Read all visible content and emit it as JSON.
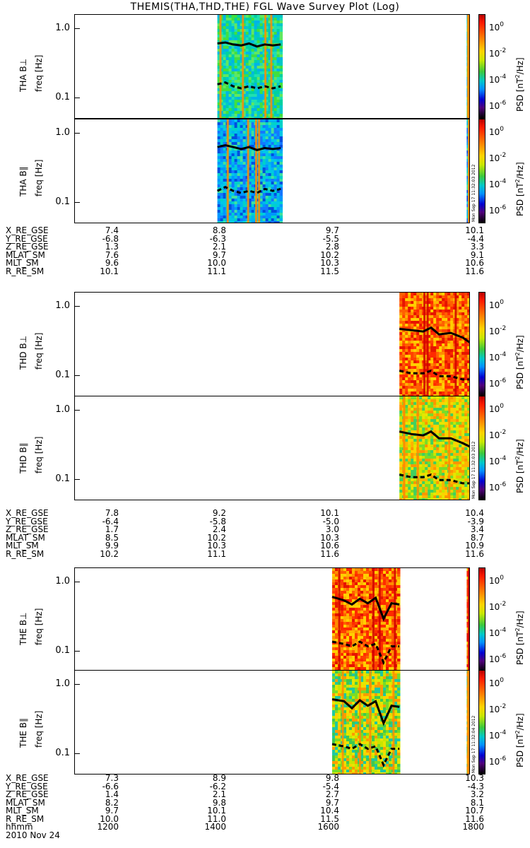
{
  "title": "THEMIS(THA,THD,THE) FGL Wave Survey Plot (Log)",
  "colorbar": {
    "label_prefix": "PSD [nT",
    "label_exp": "2",
    "label_suffix": "/Hz]",
    "ticks": [
      {
        "base": "10",
        "exp": "0",
        "log": 0
      },
      {
        "base": "10",
        "exp": "-2",
        "log": -2
      },
      {
        "base": "10",
        "exp": "-4",
        "log": -4
      },
      {
        "base": "10",
        "exp": "-6",
        "log": -6
      }
    ],
    "range_log": [
      -7,
      1
    ]
  },
  "timestamps": [
    "Mon Sep 17 11:32:03 2012",
    "Mon Sep 17 11:32:03 2012",
    "Mon Sep 17 11:32:04 2012"
  ],
  "chart_data": [
    {
      "type": "heatmap",
      "probe": "THA",
      "panels": [
        {
          "ylabel": "THA B⊥",
          "yunit": "freq [Hz]",
          "ytick_labels": [
            "1.0",
            "0.1"
          ],
          "ylim": [
            0.05,
            1.6
          ],
          "yscale": "log",
          "data_segments": [
            [
              0.36,
              0.52
            ],
            [
              0.99,
              1.0
            ]
          ],
          "dominant": "green-cyan",
          "line_solid": [
            [
              0.36,
              0.62
            ],
            [
              0.38,
              0.64
            ],
            [
              0.4,
              0.6
            ],
            [
              0.42,
              0.58
            ],
            [
              0.44,
              0.62
            ],
            [
              0.46,
              0.56
            ],
            [
              0.48,
              0.6
            ],
            [
              0.5,
              0.58
            ],
            [
              0.52,
              0.6
            ]
          ],
          "line_dashed": [
            [
              0.36,
              0.16
            ],
            [
              0.38,
              0.17
            ],
            [
              0.4,
              0.15
            ],
            [
              0.42,
              0.14
            ],
            [
              0.44,
              0.15
            ],
            [
              0.46,
              0.14
            ],
            [
              0.48,
              0.15
            ],
            [
              0.5,
              0.14
            ],
            [
              0.52,
              0.15
            ]
          ]
        },
        {
          "ylabel": "THA B∥",
          "yunit": "freq [Hz]",
          "ytick_labels": [
            "1.0",
            "0.1"
          ],
          "ylim": [
            0.05,
            1.6
          ],
          "yscale": "log",
          "data_segments": [
            [
              0.36,
              0.52
            ],
            [
              0.99,
              1.0
            ]
          ],
          "dominant": "cyan-blue",
          "line_solid": [
            [
              0.36,
              0.64
            ],
            [
              0.38,
              0.68
            ],
            [
              0.4,
              0.64
            ],
            [
              0.42,
              0.6
            ],
            [
              0.44,
              0.64
            ],
            [
              0.46,
              0.58
            ],
            [
              0.48,
              0.62
            ],
            [
              0.5,
              0.6
            ],
            [
              0.52,
              0.62
            ]
          ],
          "line_dashed": [
            [
              0.36,
              0.15
            ],
            [
              0.38,
              0.17
            ],
            [
              0.4,
              0.15
            ],
            [
              0.42,
              0.14
            ],
            [
              0.44,
              0.15
            ],
            [
              0.46,
              0.14
            ],
            [
              0.48,
              0.16
            ],
            [
              0.5,
              0.15
            ],
            [
              0.52,
              0.16
            ]
          ]
        }
      ],
      "orbit": {
        "labels": [
          "X_RE_GSE",
          "Y_RE_GSE",
          "Z_RE_GSE",
          "MLAT_SM",
          "MLT_SM",
          "R_RE_SM"
        ],
        "values": [
          [
            "7.4",
            "8.8",
            "9.7",
            "10.1"
          ],
          [
            "-6.8",
            "-6.3",
            "-5.5",
            "-4.4"
          ],
          [
            "1.3",
            "2.1",
            "2.8",
            "3.3"
          ],
          [
            "7.6",
            "9.7",
            "10.2",
            "9.1"
          ],
          [
            "9.6",
            "10.0",
            "10.3",
            "10.6"
          ],
          [
            "10.1",
            "11.1",
            "11.5",
            "11.6"
          ]
        ]
      }
    },
    {
      "type": "heatmap",
      "probe": "THD",
      "panels": [
        {
          "ylabel": "THD B⊥",
          "yunit": "freq [Hz]",
          "ytick_labels": [
            "1.0",
            "0.1"
          ],
          "ylim": [
            0.05,
            1.6
          ],
          "yscale": "log",
          "data_segments": [
            [
              0.82,
              1.0
            ]
          ],
          "dominant": "red-orange",
          "line_solid": [
            [
              0.82,
              0.48
            ],
            [
              0.85,
              0.46
            ],
            [
              0.88,
              0.44
            ],
            [
              0.9,
              0.5
            ],
            [
              0.92,
              0.4
            ],
            [
              0.95,
              0.42
            ],
            [
              0.98,
              0.36
            ],
            [
              1.0,
              0.3
            ]
          ],
          "line_dashed": [
            [
              0.82,
              0.12
            ],
            [
              0.85,
              0.11
            ],
            [
              0.88,
              0.11
            ],
            [
              0.9,
              0.12
            ],
            [
              0.92,
              0.1
            ],
            [
              0.95,
              0.1
            ],
            [
              0.98,
              0.09
            ],
            [
              1.0,
              0.09
            ]
          ]
        },
        {
          "ylabel": "THD B∥",
          "yunit": "freq [Hz]",
          "ytick_labels": [
            "1.0",
            "0.1"
          ],
          "ylim": [
            0.05,
            1.6
          ],
          "yscale": "log",
          "data_segments": [
            [
              0.82,
              1.0
            ]
          ],
          "dominant": "yellow-green",
          "line_solid": [
            [
              0.82,
              0.5
            ],
            [
              0.85,
              0.46
            ],
            [
              0.88,
              0.44
            ],
            [
              0.9,
              0.5
            ],
            [
              0.92,
              0.4
            ],
            [
              0.95,
              0.4
            ],
            [
              0.98,
              0.34
            ],
            [
              1.0,
              0.3
            ]
          ],
          "line_dashed": [
            [
              0.82,
              0.12
            ],
            [
              0.85,
              0.11
            ],
            [
              0.88,
              0.11
            ],
            [
              0.9,
              0.12
            ],
            [
              0.92,
              0.1
            ],
            [
              0.95,
              0.1
            ],
            [
              0.98,
              0.09
            ],
            [
              1.0,
              0.09
            ]
          ]
        }
      ],
      "orbit": {
        "labels": [
          "X_RE_GSE",
          "Y_RE_GSE",
          "Z_RE_GSE",
          "MLAT_SM",
          "MLT_SM",
          "R_RE_SM"
        ],
        "values": [
          [
            "7.8",
            "9.2",
            "10.1",
            "10.4"
          ],
          [
            "-6.4",
            "-5.8",
            "-5.0",
            "-3.9"
          ],
          [
            "1.7",
            "2.4",
            "3.0",
            "3.4"
          ],
          [
            "8.5",
            "10.2",
            "10.3",
            "8.7"
          ],
          [
            "9.9",
            "10.3",
            "10.6",
            "10.9"
          ],
          [
            "10.2",
            "11.1",
            "11.6",
            "11.6"
          ]
        ]
      }
    },
    {
      "type": "heatmap",
      "probe": "THE",
      "panels": [
        {
          "ylabel": "THE B⊥",
          "yunit": "freq [Hz]",
          "ytick_labels": [
            "1.0",
            "0.1"
          ],
          "ylim": [
            0.05,
            1.6
          ],
          "yscale": "log",
          "data_segments": [
            [
              0.65,
              0.82
            ],
            [
              0.99,
              1.0
            ]
          ],
          "dominant": "red-orange",
          "line_solid": [
            [
              0.65,
              0.62
            ],
            [
              0.68,
              0.55
            ],
            [
              0.7,
              0.48
            ],
            [
              0.72,
              0.58
            ],
            [
              0.74,
              0.5
            ],
            [
              0.76,
              0.6
            ],
            [
              0.78,
              0.3
            ],
            [
              0.8,
              0.5
            ],
            [
              0.82,
              0.48
            ]
          ],
          "line_dashed": [
            [
              0.65,
              0.14
            ],
            [
              0.68,
              0.13
            ],
            [
              0.7,
              0.12
            ],
            [
              0.72,
              0.14
            ],
            [
              0.74,
              0.12
            ],
            [
              0.76,
              0.13
            ],
            [
              0.78,
              0.07
            ],
            [
              0.8,
              0.12
            ],
            [
              0.82,
              0.12
            ]
          ]
        },
        {
          "ylabel": "THE B∥",
          "yunit": "freq [Hz]",
          "ytick_labels": [
            "1.0",
            "0.1"
          ],
          "ylim": [
            0.05,
            1.6
          ],
          "yscale": "log",
          "data_segments": [
            [
              0.65,
              0.82
            ],
            [
              0.99,
              1.0
            ]
          ],
          "dominant": "green-yellow",
          "line_solid": [
            [
              0.65,
              0.62
            ],
            [
              0.68,
              0.58
            ],
            [
              0.7,
              0.46
            ],
            [
              0.72,
              0.6
            ],
            [
              0.74,
              0.5
            ],
            [
              0.76,
              0.58
            ],
            [
              0.78,
              0.28
            ],
            [
              0.8,
              0.5
            ],
            [
              0.82,
              0.48
            ]
          ],
          "line_dashed": [
            [
              0.65,
              0.14
            ],
            [
              0.68,
              0.13
            ],
            [
              0.7,
              0.12
            ],
            [
              0.72,
              0.14
            ],
            [
              0.74,
              0.12
            ],
            [
              0.76,
              0.13
            ],
            [
              0.78,
              0.07
            ],
            [
              0.8,
              0.12
            ],
            [
              0.82,
              0.12
            ]
          ]
        }
      ],
      "orbit": {
        "labels": [
          "X_RE_GSE",
          "Y_RE_GSE",
          "Z_RE_GSE",
          "MLAT_SM",
          "MLT_SM",
          "R_RE_SM",
          "hhmm"
        ],
        "values": [
          [
            "7.3",
            "8.9",
            "9.8",
            "10.3"
          ],
          [
            "-6.6",
            "-6.2",
            "-5.4",
            "-4.3"
          ],
          [
            "1.4",
            "2.1",
            "2.7",
            "3.2"
          ],
          [
            "8.2",
            "9.8",
            "9.7",
            "8.1"
          ],
          [
            "9.7",
            "10.1",
            "10.4",
            "10.7"
          ],
          [
            "10.0",
            "11.0",
            "11.5",
            "11.6"
          ],
          [
            "1200",
            "1400",
            "1600",
            "1800"
          ]
        ]
      },
      "date": "2010 Nov 24"
    }
  ]
}
